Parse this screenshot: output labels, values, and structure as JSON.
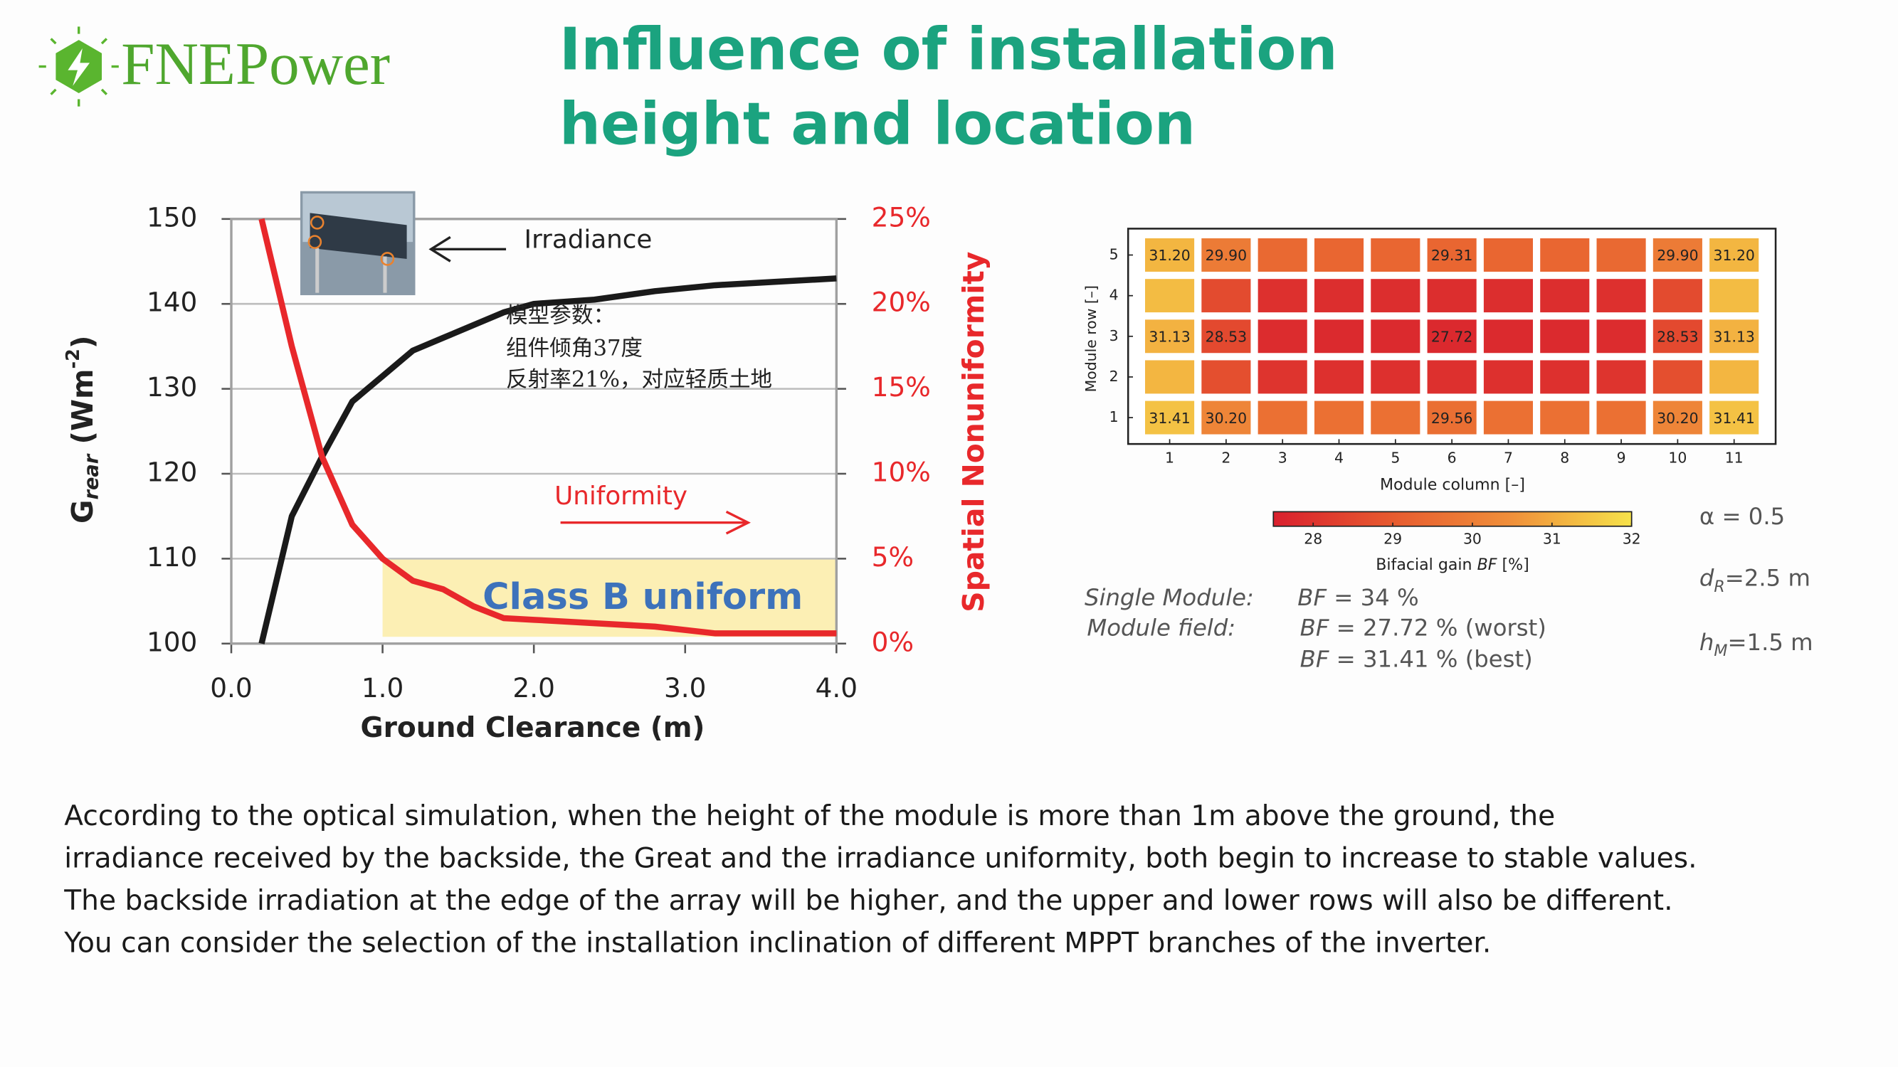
{
  "header": {
    "logo": "FNEPower",
    "title": [
      "Influence of installation",
      "height and location"
    ]
  },
  "chart_data": [
    {
      "type": "line",
      "xlabel": "Ground Clearance (m)",
      "ylabel": [
        "G",
        "rear",
        " (Wm",
        "-2",
        ")"
      ],
      "y2label": "Spatial Nonuniformity",
      "x": [
        0.2,
        0.4,
        0.6,
        0.8,
        1.0,
        1.2,
        1.4,
        1.6,
        1.8,
        2.0,
        2.4,
        2.8,
        3.2,
        3.6,
        4.0
      ],
      "series": [
        {
          "name": "Irradiance",
          "color": "#1a1a1a",
          "values": [
            100,
            115,
            122,
            128.5,
            131.5,
            134.5,
            136,
            137.5,
            139,
            140,
            140.5,
            141.5,
            142.2,
            142.6,
            143
          ]
        },
        {
          "name": "Uniformity",
          "color": "#e8282b",
          "axis": "y2",
          "values": [
            25,
            17.5,
            11,
            7,
            5,
            3.7,
            3.2,
            2.2,
            1.5,
            1.4,
            1.2,
            1.0,
            0.6,
            0.6,
            0.6
          ]
        }
      ],
      "xlim": [
        0,
        4
      ],
      "xticks": [
        {
          "value": 0,
          "label": "0.0"
        },
        {
          "value": 1,
          "label": "1.0"
        },
        {
          "value": 2,
          "label": "2.0"
        },
        {
          "value": 3,
          "label": "3.0"
        },
        {
          "value": 4,
          "label": "4.0"
        }
      ],
      "ylim": [
        100,
        150
      ],
      "yticks": [
        100,
        110,
        120,
        130,
        140,
        150
      ],
      "y2lim": [
        0,
        25
      ],
      "y2ticks": [
        {
          "value": 0,
          "label": "0%"
        },
        {
          "value": 5,
          "label": "5%"
        },
        {
          "value": 10,
          "label": "10%"
        },
        {
          "value": 15,
          "label": "15%"
        },
        {
          "value": 20,
          "label": "20%"
        },
        {
          "value": 25,
          "label": "25%"
        }
      ],
      "grid": true,
      "notes": [
        "模型参数：",
        "组件倾角37度",
        "反射率21%，对应轻质土地"
      ],
      "band": {
        "label": "Class B uniform",
        "x": [
          1,
          4
        ],
        "y2": [
          0.4,
          5
        ],
        "color": "#fcefb4"
      }
    },
    {
      "type": "heatmap",
      "columns": [
        1,
        2,
        3,
        4,
        5,
        6,
        7,
        8,
        9,
        10,
        11
      ],
      "rows": [
        1,
        2,
        3,
        4,
        5
      ],
      "values": [
        [
          31.41,
          30.2,
          29.6,
          29.6,
          29.6,
          29.56,
          29.6,
          29.6,
          29.6,
          30.2,
          31.41
        ],
        [
          31.2,
          28.7,
          28.0,
          27.9,
          27.9,
          27.9,
          27.9,
          27.9,
          28.0,
          28.7,
          31.2
        ],
        [
          31.13,
          28.53,
          27.8,
          27.75,
          27.75,
          27.72,
          27.75,
          27.75,
          27.8,
          28.53,
          31.13
        ],
        [
          31.3,
          28.6,
          27.9,
          27.85,
          27.85,
          27.85,
          27.85,
          27.85,
          27.9,
          28.6,
          31.3
        ],
        [
          31.2,
          29.9,
          29.4,
          29.3,
          29.3,
          29.31,
          29.3,
          29.3,
          29.4,
          29.9,
          31.2
        ]
      ],
      "value_labels": [
        [
          "31.41",
          "30.20",
          null,
          null,
          null,
          "29.56",
          null,
          null,
          null,
          "30.20",
          "31.41"
        ],
        [
          null,
          null,
          null,
          null,
          null,
          null,
          null,
          null,
          null,
          null,
          null
        ],
        [
          "31.13",
          "28.53",
          null,
          null,
          null,
          "27.72",
          null,
          null,
          null,
          "28.53",
          "31.13"
        ],
        [
          null,
          null,
          null,
          null,
          null,
          null,
          null,
          null,
          null,
          null,
          null
        ],
        [
          "31.20",
          "29.90",
          null,
          null,
          null,
          "29.31",
          null,
          null,
          null,
          "29.90",
          "31.20"
        ]
      ],
      "xlabel": "Module column [–]",
      "ylabel": "Module row [–]",
      "clim": [
        27.5,
        32
      ],
      "cticks": [
        28,
        29,
        30,
        31,
        32
      ],
      "clabel": [
        "Bifacial gain ",
        "BF",
        " [%]"
      ],
      "colormap": [
        "#d9202e",
        "#e75b2f",
        "#f0903a",
        "#f6e24a"
      ],
      "annotations": {
        "alpha": "α = 0.5",
        "dR": [
          "d",
          "R",
          "=2.5 m"
        ],
        "hM": [
          "h",
          "M",
          "=1.5 m"
        ],
        "single": [
          "Single Module:",
          "BF",
          " = 34 %"
        ],
        "field": [
          "Module field:",
          "BF",
          " = 27.72 % (worst)",
          "BF",
          " = 31.41 % (best)"
        ]
      }
    }
  ],
  "body": [
    "According to the optical simulation, when the height of the module is more than 1m above the ground, the",
    "irradiance received by the backside, the Great and the irradiance uniformity, both begin to increase to stable values.",
    "The backside irradiation at the edge of the array will be higher, and the upper and lower rows will also be different.",
    "You can consider the selection of the installation inclination of different MPPT branches of the inverter."
  ]
}
